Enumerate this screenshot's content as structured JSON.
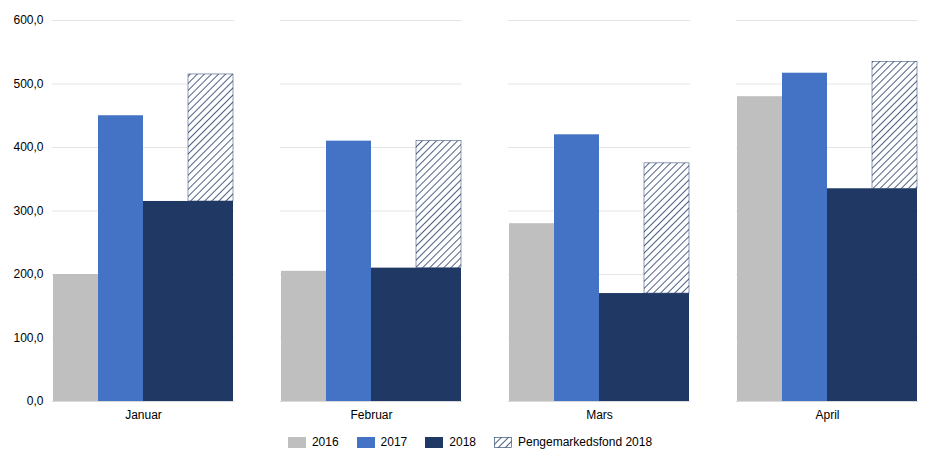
{
  "chart_data": {
    "type": "bar",
    "categories": [
      "Januar",
      "Februar",
      "Mars",
      "April"
    ],
    "series": [
      {
        "name": "2016",
        "color": "#bfbfbf",
        "values": [
          200,
          205,
          280,
          480
        ]
      },
      {
        "name": "2017",
        "color": "#4472c4",
        "values": [
          450,
          410,
          420,
          517
        ]
      },
      {
        "name": "2018",
        "color": "#1f3864",
        "values": [
          315,
          210,
          170,
          335
        ]
      },
      {
        "name": "Pengemarkedsfond 2018",
        "color": "#1f3864",
        "values": [
          200,
          200,
          205,
          200
        ],
        "stacked": true
      }
    ],
    "ylim": [
      0,
      600
    ],
    "yticks": [
      {
        "value": 0,
        "label": "0,0"
      },
      {
        "value": 100,
        "label": "100,0"
      },
      {
        "value": 200,
        "label": "200,0"
      },
      {
        "value": 300,
        "label": "300,0"
      },
      {
        "value": 400,
        "label": "400,0"
      },
      {
        "value": 500,
        "label": "500,0"
      },
      {
        "value": 600,
        "label": "600,0"
      }
    ],
    "grid": true,
    "legend": "bottom"
  }
}
